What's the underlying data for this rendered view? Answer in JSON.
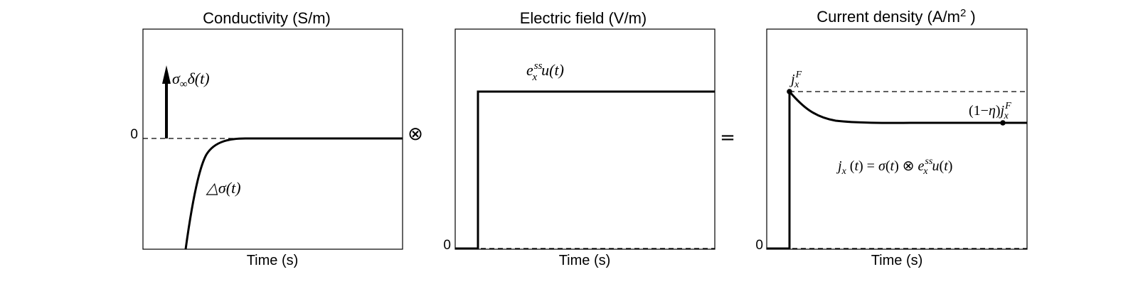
{
  "panels": [
    {
      "title": "Conductivity (S/m)",
      "xlabel": "Time (s)",
      "zero_label": "0",
      "impulse_label": "σ∞δ(t)",
      "curve_label": "△σ(t)"
    },
    {
      "title": "Electric field (V/m)",
      "xlabel": "Time (s)",
      "zero_label": "0",
      "step_label": "e_x^ss u(t)"
    },
    {
      "title": "Current density (A/m² )",
      "xlabel": "Time (s)",
      "zero_label": "0",
      "peak_label": "j_x^F",
      "final_label": "(1−η)j_x^F",
      "equation": "j_x(t) = σ(t) ⊗ e_x^ss u(t)"
    }
  ],
  "operators": {
    "convolve": "⊗",
    "equals": "="
  }
}
